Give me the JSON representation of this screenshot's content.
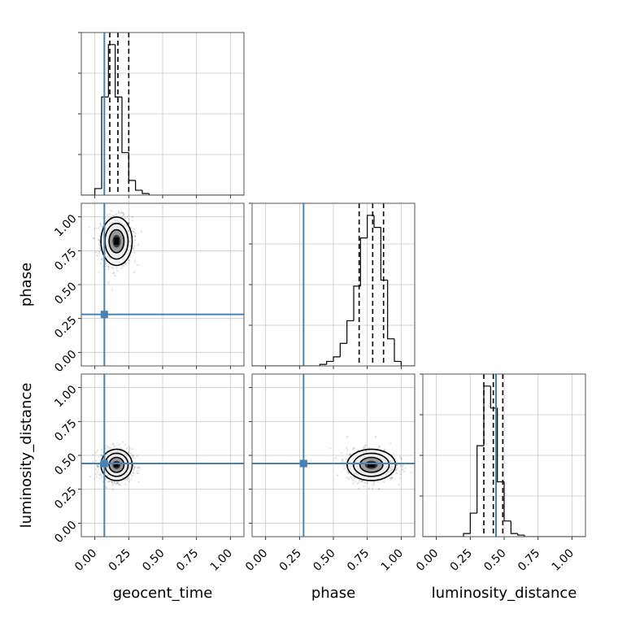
{
  "chart_data": {
    "type": "corner",
    "parameters": [
      "geocent_time",
      "phase",
      "luminosity_distance"
    ],
    "axis_labels": {
      "x": [
        "geocent_time",
        "phase",
        "luminosity_distance"
      ],
      "y": [
        "",
        "phase",
        "luminosity_distance"
      ]
    },
    "ticks": [
      0.0,
      0.25,
      0.5,
      0.75,
      1.0
    ],
    "tick_labels": [
      "0.00",
      "0.25",
      "0.50",
      "0.75",
      "1.00"
    ],
    "xlim": [
      -0.1,
      1.1
    ],
    "ylim": [
      -0.1,
      1.1
    ],
    "grid": true,
    "truths": {
      "geocent_time": 0.07,
      "phase": 0.28,
      "luminosity_distance": 0.44
    },
    "truth_color": "#4682b4",
    "histograms": [
      {
        "parameter": "geocent_time",
        "bin_edges": [
          0.0,
          0.05,
          0.1,
          0.15,
          0.2,
          0.25,
          0.3,
          0.35,
          0.4,
          0.45,
          0.5
        ],
        "counts": [
          4,
          60,
          92,
          60,
          26,
          9,
          3,
          1,
          0,
          0
        ],
        "quantiles": [
          0.11,
          0.17,
          0.25
        ]
      },
      {
        "parameter": "phase",
        "bin_edges": [
          0.4,
          0.45,
          0.5,
          0.55,
          0.6,
          0.65,
          0.7,
          0.75,
          0.8,
          0.85,
          0.9,
          0.95,
          1.0
        ],
        "counts": [
          1,
          3,
          6,
          15,
          30,
          53,
          85,
          100,
          92,
          57,
          18,
          3
        ],
        "quantiles": [
          0.69,
          0.79,
          0.87
        ]
      },
      {
        "parameter": "luminosity_distance",
        "bin_edges": [
          0.2,
          0.25,
          0.3,
          0.35,
          0.4,
          0.45,
          0.5,
          0.55,
          0.6,
          0.65,
          0.7
        ],
        "counts": [
          2,
          15,
          58,
          96,
          82,
          35,
          10,
          2,
          1,
          0
        ],
        "quantiles": [
          0.35,
          0.42,
          0.49
        ]
      }
    ],
    "density_panels": [
      {
        "x": "geocent_time",
        "y": "phase",
        "center": [
          0.16,
          0.82
        ],
        "spread": [
          0.055,
          0.085
        ]
      },
      {
        "x": "geocent_time",
        "y": "luminosity_distance",
        "center": [
          0.16,
          0.43
        ],
        "spread": [
          0.055,
          0.055
        ]
      },
      {
        "x": "phase",
        "y": "luminosity_distance",
        "center": [
          0.78,
          0.43
        ],
        "spread": [
          0.085,
          0.055
        ]
      }
    ]
  }
}
